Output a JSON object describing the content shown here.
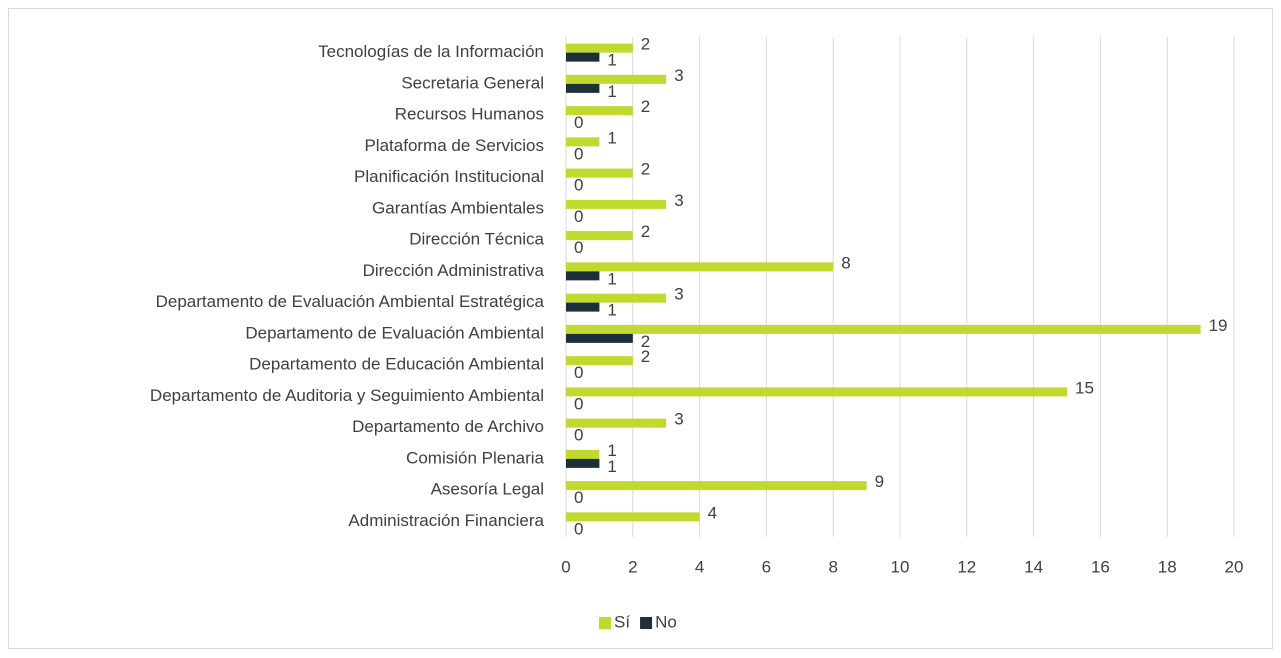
{
  "chart_data": {
    "type": "hbar",
    "categories": [
      "Administración Financiera",
      "Asesoría Legal",
      "Comisión Plenaria",
      "Departamento de Archivo",
      "Departamento de Auditoria y Seguimiento Ambiental",
      "Departamento de Educación Ambiental",
      "Departamento de Evaluación Ambiental",
      "Departamento de Evaluación Ambiental Estratégica",
      "Dirección Administrativa",
      "Dirección Técnica",
      "Garantías Ambientales",
      "Planificación Institucional",
      "Plataforma de Servicios",
      "Recursos Humanos",
      "Secretaria General",
      "Tecnologías de la Información"
    ],
    "series": [
      {
        "name": "Sí",
        "color": "#c1d82f",
        "values": [
          4,
          9,
          1,
          3,
          15,
          2,
          19,
          3,
          8,
          2,
          3,
          2,
          1,
          2,
          3,
          2
        ]
      },
      {
        "name": "No",
        "color": "#1c2f3b",
        "values": [
          0,
          0,
          1,
          0,
          0,
          0,
          2,
          1,
          1,
          0,
          0,
          0,
          0,
          0,
          1,
          1
        ]
      }
    ],
    "xlim": [
      0,
      20
    ],
    "xticks": [
      0,
      2,
      4,
      6,
      8,
      10,
      12,
      14,
      16,
      18,
      20
    ],
    "grid": true,
    "legend": "bottom"
  }
}
